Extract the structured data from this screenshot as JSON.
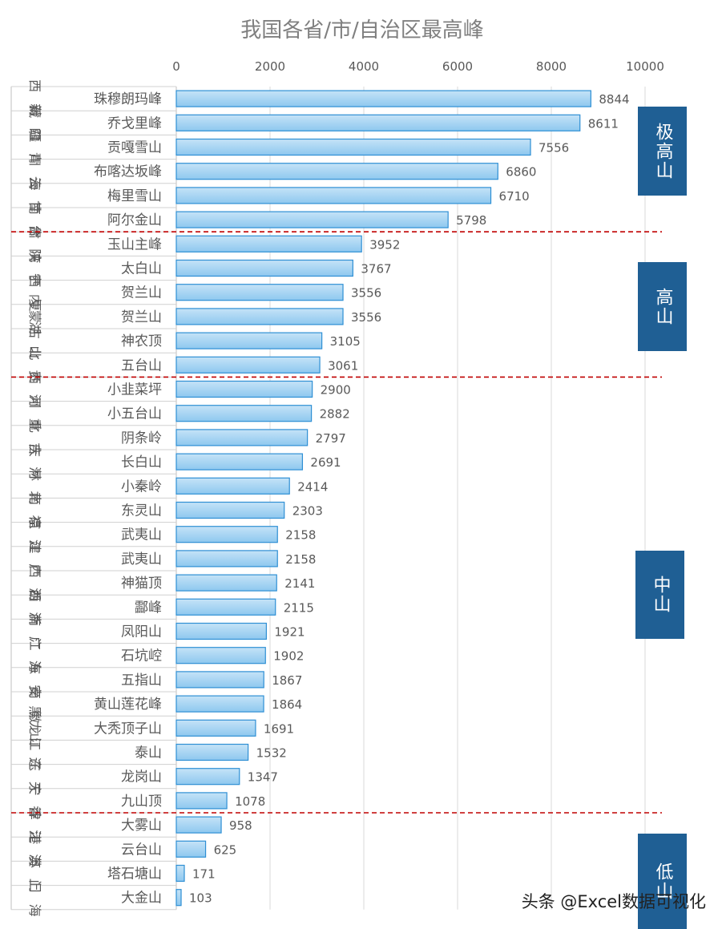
{
  "chart_data": {
    "type": "bar",
    "title": "我国各省/市/自治区最高峰",
    "xlim": [
      0,
      10000
    ],
    "xticks": [
      "0",
      "2000",
      "4000",
      "6000",
      "8000",
      "10000"
    ],
    "grid": "vertical",
    "categories": [
      {
        "province": "西藏",
        "peak": "珠穆朗玛峰",
        "value": 8844
      },
      {
        "province": "新疆",
        "peak": "乔戈里峰",
        "value": 8611
      },
      {
        "province": "四川",
        "peak": "贡嘎雪山",
        "value": 7556
      },
      {
        "province": "青海",
        "peak": "布喀达坂峰",
        "value": 6860
      },
      {
        "province": "云南",
        "peak": "梅里雪山",
        "value": 6710
      },
      {
        "province": "甘肃",
        "peak": "阿尔金山",
        "value": 5798
      },
      {
        "province": "台湾",
        "peak": "玉山主峰",
        "value": 3952
      },
      {
        "province": "陕西",
        "peak": "太白山",
        "value": 3767
      },
      {
        "province": "宁夏",
        "peak": "贺兰山",
        "value": 3556
      },
      {
        "province": "内蒙古",
        "peak": "贺兰山",
        "value": 3556
      },
      {
        "province": "湖北",
        "peak": "神农顶",
        "value": 3105
      },
      {
        "province": "山西",
        "peak": "五台山",
        "value": 3061
      },
      {
        "province": "贵州",
        "peak": "小韭菜坪",
        "value": 2900
      },
      {
        "province": "河北",
        "peak": "小五台山",
        "value": 2882
      },
      {
        "province": "重庆",
        "peak": "阴条岭",
        "value": 2797
      },
      {
        "province": "吉林",
        "peak": "长白山",
        "value": 2691
      },
      {
        "province": "河南",
        "peak": "小秦岭",
        "value": 2414
      },
      {
        "province": "北京",
        "peak": "东灵山",
        "value": 2303
      },
      {
        "province": "福建",
        "peak": "武夷山",
        "value": 2158
      },
      {
        "province": "江西",
        "peak": "武夷山",
        "value": 2158
      },
      {
        "province": "广西",
        "peak": "神猫顶",
        "value": 2141
      },
      {
        "province": "湖南",
        "peak": "酃峰",
        "value": 2115
      },
      {
        "province": "浙江",
        "peak": "凤阳山",
        "value": 1921
      },
      {
        "province": "广东",
        "peak": "石坑崆",
        "value": 1902
      },
      {
        "province": "海南",
        "peak": "五指山",
        "value": 1867
      },
      {
        "province": "安徽",
        "peak": "黄山莲花峰",
        "value": 1864
      },
      {
        "province": "黑龙江",
        "peak": "大秃顶子山",
        "value": 1691
      },
      {
        "province": "山东",
        "peak": "泰山",
        "value": 1532
      },
      {
        "province": "辽宁",
        "peak": "龙岗山",
        "value": 1347
      },
      {
        "province": "天津",
        "peak": "九山顶",
        "value": 1078
      },
      {
        "province": "香港",
        "peak": "大雾山",
        "value": 958
      },
      {
        "province": "江苏",
        "peak": "云台山",
        "value": 625
      },
      {
        "province": "澳门",
        "peak": "塔石塘山",
        "value": 171
      },
      {
        "province": "上海",
        "peak": "大金山",
        "value": 103
      }
    ],
    "groups": [
      {
        "label": "极高山",
        "from": 0,
        "to": 5
      },
      {
        "label": "高山",
        "from": 6,
        "to": 11
      },
      {
        "label": "中山",
        "from": 12,
        "to": 29
      },
      {
        "label": "低山",
        "from": 30,
        "to": 33
      }
    ],
    "separators_after_index": [
      5,
      11,
      29
    ],
    "colors": {
      "bar_fill_top": "#c5e3f7",
      "bar_fill_bottom": "#8ec8ef",
      "bar_stroke": "#2e8fd4",
      "separator": "#c00000",
      "band": "#1f5f94",
      "grid": "#d9d9d9"
    }
  },
  "watermark": "头条 @Excel数据可视化"
}
